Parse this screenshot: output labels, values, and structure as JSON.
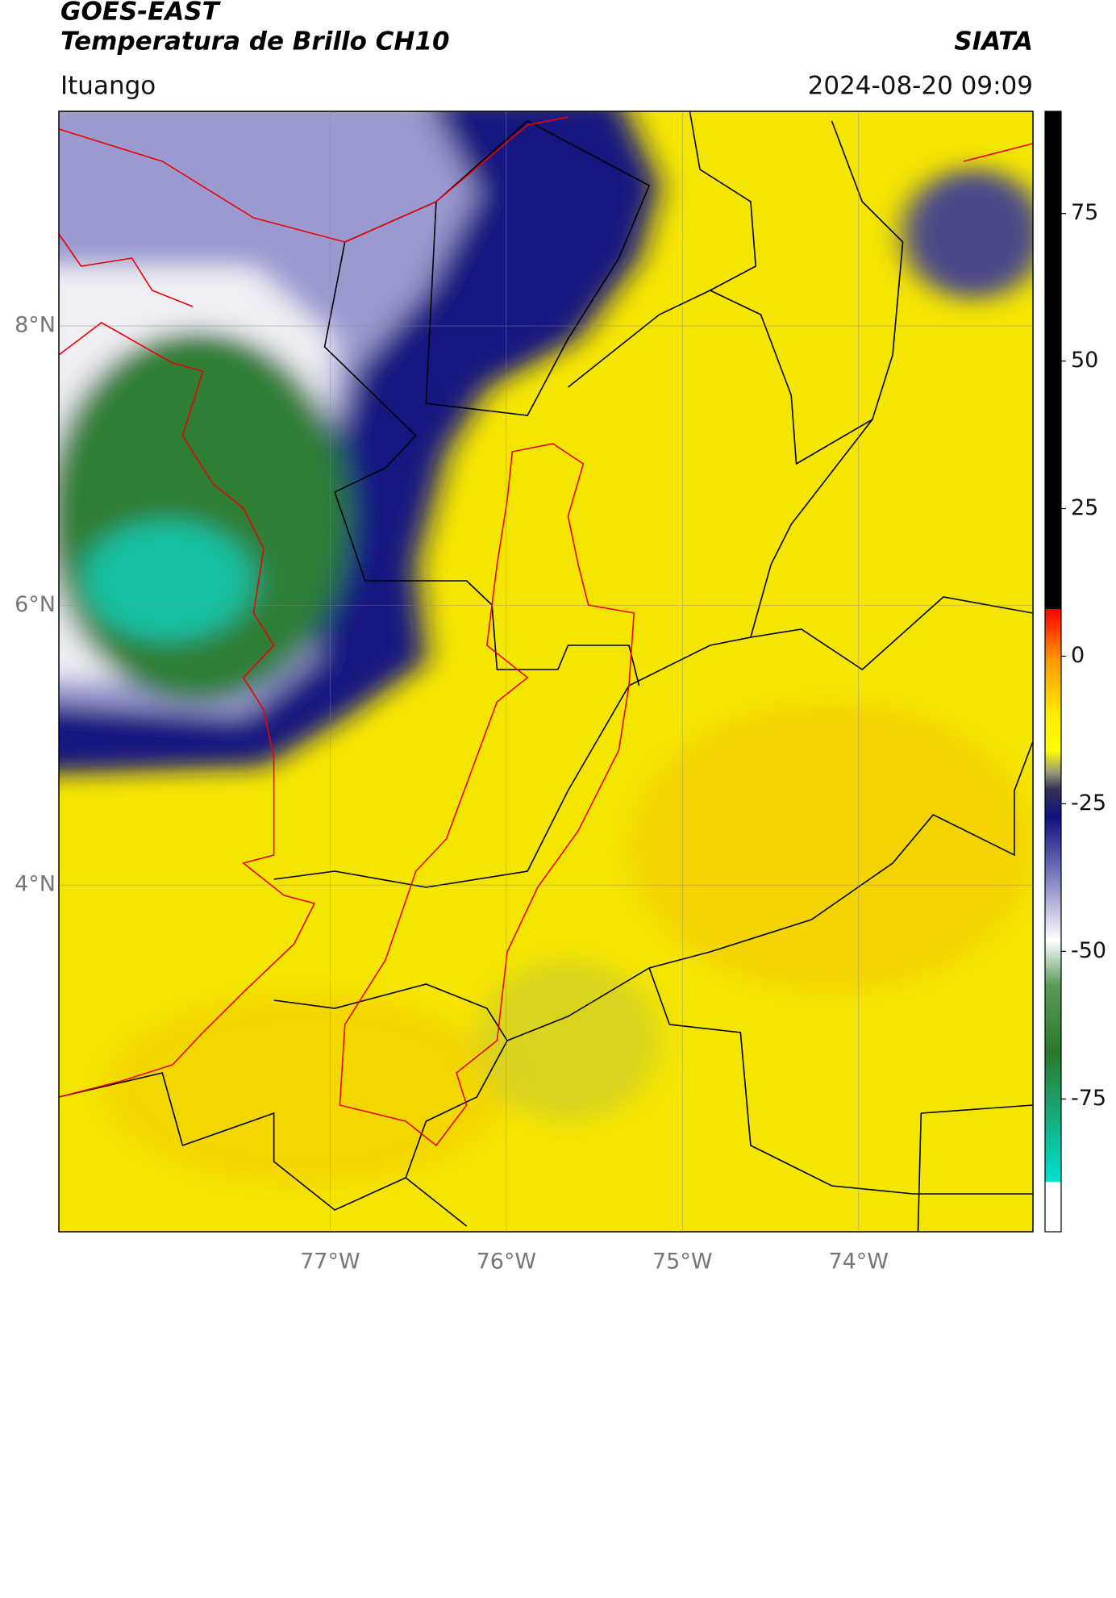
{
  "header": {
    "title": "GOES-EAST",
    "subtitle": "Temperatura de Brillo CH10",
    "source": "SIATA",
    "location": "Ituango",
    "timestamp": "2024-08-20 09:09"
  },
  "map": {
    "xlim": [
      -78.54,
      -73.01
    ],
    "ylim": [
      1.52,
      9.535
    ],
    "grid": true,
    "xticks": [
      {
        "value": -77,
        "label": "77°W"
      },
      {
        "value": -76,
        "label": "76°W"
      },
      {
        "value": -75,
        "label": "75°W"
      },
      {
        "value": -74,
        "label": "74°W"
      }
    ],
    "yticks": [
      {
        "value": 8,
        "label": "8°N"
      },
      {
        "value": 6,
        "label": "6°N"
      },
      {
        "value": 4,
        "label": "4°N"
      }
    ]
  },
  "colorbar": {
    "lim": [
      -97.5,
      92.3
    ],
    "ticks": [
      75,
      50,
      25,
      0,
      -25,
      -50,
      -75
    ]
  }
}
